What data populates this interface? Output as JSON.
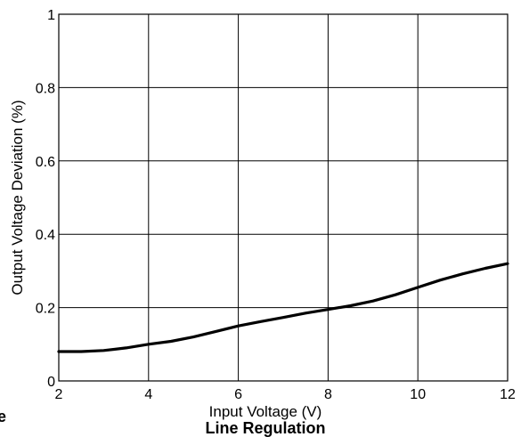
{
  "chart_data": {
    "type": "line",
    "title": "Line Regulation",
    "xlabel": "Input Voltage (V)",
    "ylabel": "Output Voltage Deviation (%)",
    "xlim": [
      2,
      12
    ],
    "ylim": [
      0,
      1
    ],
    "x_ticks": [
      "2",
      "4",
      "6",
      "8",
      "10",
      "12"
    ],
    "y_ticks": [
      "0",
      "0.2",
      "0.4",
      "0.6",
      "0.8",
      "1"
    ],
    "grid": true,
    "legend": "none",
    "cropped_left_text": "e",
    "series": [
      {
        "x": [
          2,
          2.5,
          3,
          3.5,
          4,
          4.5,
          5,
          5.5,
          6,
          6.5,
          7,
          7.5,
          8,
          8.5,
          9,
          9.5,
          10,
          10.5,
          11,
          11.5,
          12
        ],
        "y": [
          0.08,
          0.08,
          0.083,
          0.09,
          0.1,
          0.108,
          0.12,
          0.135,
          0.15,
          0.162,
          0.173,
          0.185,
          0.195,
          0.205,
          0.218,
          0.235,
          0.255,
          0.275,
          0.292,
          0.307,
          0.32
        ],
        "color": "#000000"
      }
    ]
  }
}
